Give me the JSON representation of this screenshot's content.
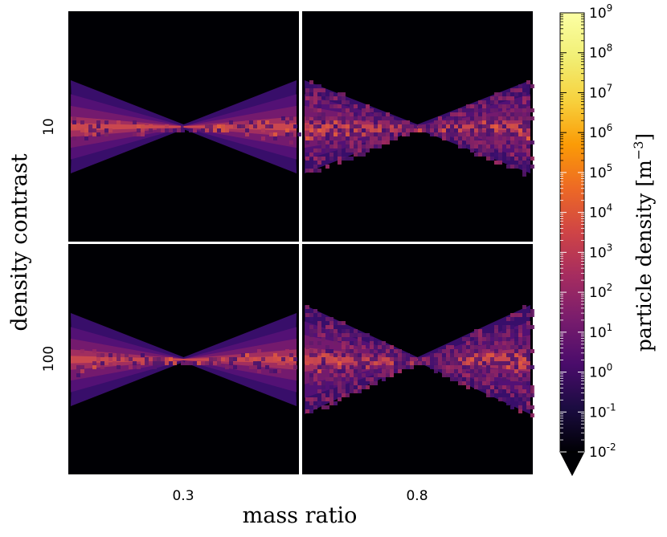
{
  "chart_data": {
    "type": "heatmap",
    "title": "",
    "xlabel": "mass ratio",
    "ylabel": "density contrast",
    "columns": [
      "0.3",
      "0.8"
    ],
    "rows": [
      "10",
      "100"
    ],
    "panels": [
      {
        "row": "10",
        "column": "0.3",
        "shape": "double-cone density map, smooth"
      },
      {
        "row": "10",
        "column": "0.8",
        "shape": "double-cone density map, noisy"
      },
      {
        "row": "100",
        "column": "0.3",
        "shape": "double-cone density map, smooth"
      },
      {
        "row": "100",
        "column": "0.8",
        "shape": "double-cone density map, noisy, wider"
      }
    ],
    "colorbar": {
      "label": "particle density [m^-3]",
      "scale": "log",
      "colormap": "inferno",
      "range": [
        0.01,
        1000000000
      ],
      "extend": "min",
      "tick_labels": [
        "10^-2",
        "10^-1",
        "10^0",
        "10^1",
        "10^2",
        "10^3",
        "10^4",
        "10^5",
        "10^6",
        "10^7",
        "10^8",
        "10^9"
      ]
    }
  }
}
